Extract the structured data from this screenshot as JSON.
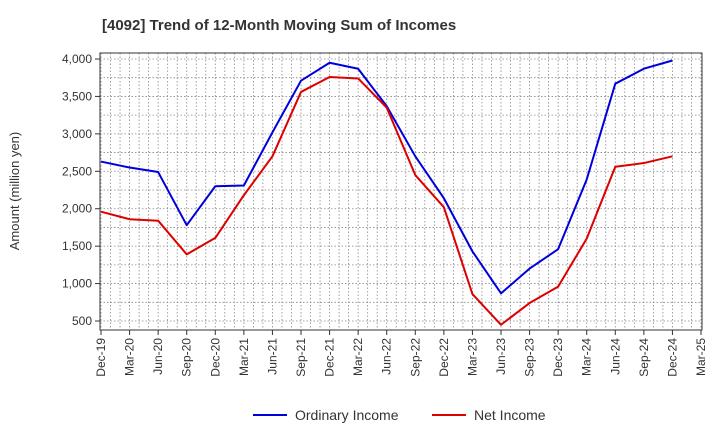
{
  "chart_data": {
    "type": "line",
    "title": "[4092]  Trend of 12-Month Moving Sum of Incomes",
    "xlabel": "",
    "ylabel": "Amount (million yen)",
    "ylim": [
      380,
      4080
    ],
    "yticks": [
      500,
      1000,
      1500,
      2000,
      2500,
      3000,
      3500,
      4000
    ],
    "ytick_labels": [
      "500",
      "1,000",
      "1,500",
      "2,000",
      "2,500",
      "3,000",
      "3,500",
      "4,000"
    ],
    "categories": [
      "Dec-19",
      "Mar-20",
      "Jun-20",
      "Sep-20",
      "Dec-20",
      "Mar-21",
      "Jun-21",
      "Sep-21",
      "Dec-21",
      "Mar-22",
      "Jun-22",
      "Sep-22",
      "Dec-22",
      "Mar-23",
      "Jun-23",
      "Sep-23",
      "Dec-23",
      "Mar-24",
      "Jun-24",
      "Sep-24",
      "Dec-24",
      "Mar-25"
    ],
    "grid": true,
    "legend_position": "bottom",
    "series": [
      {
        "name": "Ordinary Income",
        "color": "#0000dd",
        "values": [
          2630,
          2550,
          2490,
          1780,
          2300,
          2310,
          3020,
          3710,
          3950,
          3870,
          3370,
          2700,
          2140,
          1430,
          870,
          1200,
          1460,
          2390,
          3670,
          3870,
          3980,
          null
        ]
      },
      {
        "name": "Net Income",
        "color": "#dd0000",
        "values": [
          1960,
          1860,
          1840,
          1390,
          1610,
          2180,
          2700,
          3560,
          3760,
          3740,
          3350,
          2450,
          2020,
          860,
          450,
          740,
          960,
          1600,
          2560,
          2610,
          2700,
          null
        ]
      }
    ]
  }
}
